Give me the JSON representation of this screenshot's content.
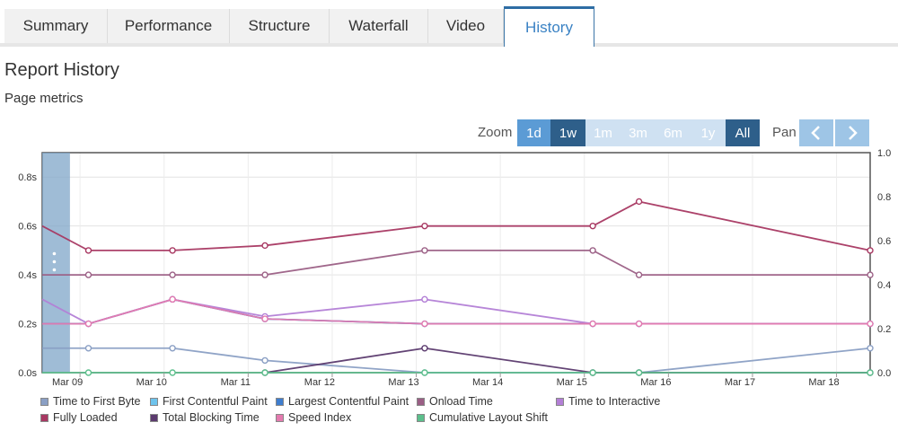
{
  "tabs": [
    {
      "label": "Summary"
    },
    {
      "label": "Performance"
    },
    {
      "label": "Structure"
    },
    {
      "label": "Waterfall"
    },
    {
      "label": "Video"
    },
    {
      "label": "History"
    }
  ],
  "active_tab": "History",
  "page_title": "Report History",
  "section_title": "Page metrics",
  "zoom": {
    "label": "Zoom",
    "buttons": [
      {
        "label": "1d",
        "state": "enabled"
      },
      {
        "label": "1w",
        "state": "selected"
      },
      {
        "label": "1m",
        "state": "disabled"
      },
      {
        "label": "3m",
        "state": "disabled"
      },
      {
        "label": "6m",
        "state": "disabled"
      },
      {
        "label": "1y",
        "state": "disabled"
      },
      {
        "label": "All",
        "state": "selected"
      }
    ]
  },
  "pan": {
    "label": "Pan"
  },
  "colors": {
    "accent": "#3a82c4",
    "zoom_enabled": "#5b9bd5",
    "zoom_selected": "#2e5f8a",
    "zoom_disabled": "#cfe1f2",
    "selection": "#7fa6c8"
  },
  "chart_data": {
    "type": "line",
    "x_axis": {
      "tick_labels": [
        "Mar 09",
        "Mar 10",
        "Mar 11",
        "Mar 12",
        "Mar 13",
        "Mar 14",
        "Mar 15",
        "Mar 16",
        "Mar 17",
        "Mar 18"
      ],
      "range_days": [
        8.55,
        18.4
      ]
    },
    "y_left": {
      "unit": "s",
      "range": [
        0,
        0.9
      ],
      "tick_labels": [
        "0.0s",
        "0.2s",
        "0.4s",
        "0.6s",
        "0.8s"
      ]
    },
    "y_right": {
      "range": [
        0,
        1.0
      ],
      "tick_labels": [
        "0.0",
        "0.2",
        "0.4",
        "0.6",
        "0.8",
        "1.0"
      ]
    },
    "grid": true,
    "selected_range_days": [
      8.55,
      8.88
    ],
    "series": [
      {
        "name": "Time to First Byte",
        "color": "#8a9fc4",
        "axis": "left",
        "points": [
          [
            8.55,
            0.1
          ],
          [
            9.1,
            0.1
          ],
          [
            10.1,
            0.1
          ],
          [
            11.2,
            0.05
          ],
          [
            13.1,
            0.0
          ],
          [
            15.1,
            0.0
          ],
          [
            15.65,
            0.0
          ],
          [
            18.4,
            0.1
          ]
        ]
      },
      {
        "name": "First Contentful Paint",
        "color": "#6ec3ec",
        "axis": "left",
        "points": [
          [
            8.55,
            0.2
          ],
          [
            9.1,
            0.2
          ],
          [
            10.1,
            0.3
          ],
          [
            11.2,
            0.22
          ],
          [
            13.1,
            0.2
          ],
          [
            15.1,
            0.2
          ],
          [
            15.65,
            0.2
          ],
          [
            18.4,
            0.2
          ]
        ]
      },
      {
        "name": "Largest Contentful Paint",
        "color": "#3f7ecf",
        "axis": "left",
        "points": [
          [
            8.55,
            0.2
          ],
          [
            9.1,
            0.2
          ],
          [
            10.1,
            0.3
          ],
          [
            11.2,
            0.22
          ],
          [
            13.1,
            0.2
          ],
          [
            15.1,
            0.2
          ],
          [
            15.65,
            0.2
          ],
          [
            18.4,
            0.2
          ]
        ]
      },
      {
        "name": "Onload Time",
        "color": "#9b5f85",
        "axis": "left",
        "points": [
          [
            8.55,
            0.4
          ],
          [
            9.1,
            0.4
          ],
          [
            10.1,
            0.4
          ],
          [
            11.2,
            0.4
          ],
          [
            13.1,
            0.5
          ],
          [
            15.1,
            0.5
          ],
          [
            15.65,
            0.4
          ],
          [
            18.4,
            0.4
          ]
        ]
      },
      {
        "name": "Time to Interactive",
        "color": "#b37fd6",
        "axis": "left",
        "points": [
          [
            8.55,
            0.3
          ],
          [
            9.1,
            0.2
          ],
          [
            10.1,
            0.3
          ],
          [
            11.2,
            0.23
          ],
          [
            13.1,
            0.3
          ],
          [
            15.1,
            0.2
          ],
          [
            15.65,
            0.2
          ],
          [
            18.4,
            0.2
          ]
        ]
      },
      {
        "name": "Fully Loaded",
        "color": "#a83862",
        "axis": "left",
        "points": [
          [
            8.55,
            0.6
          ],
          [
            9.1,
            0.5
          ],
          [
            10.1,
            0.5
          ],
          [
            11.2,
            0.52
          ],
          [
            13.1,
            0.6
          ],
          [
            15.1,
            0.6
          ],
          [
            15.65,
            0.7
          ],
          [
            18.4,
            0.5
          ]
        ]
      },
      {
        "name": "Total Blocking Time",
        "color": "#5b3a6e",
        "axis": "left",
        "points": [
          [
            11.2,
            0.0
          ],
          [
            13.1,
            0.1
          ],
          [
            15.1,
            0.0
          ],
          [
            15.65,
            0.0
          ],
          [
            18.4,
            0.0
          ]
        ]
      },
      {
        "name": "Speed Index",
        "color": "#e47aaf",
        "axis": "left",
        "points": [
          [
            8.55,
            0.2
          ],
          [
            9.1,
            0.2
          ],
          [
            10.1,
            0.3
          ],
          [
            11.2,
            0.22
          ],
          [
            13.1,
            0.2
          ],
          [
            15.1,
            0.2
          ],
          [
            15.65,
            0.2
          ],
          [
            18.4,
            0.2
          ]
        ]
      },
      {
        "name": "Cumulative Layout Shift",
        "color": "#5cbf8c",
        "axis": "right",
        "points": [
          [
            8.55,
            0.0
          ],
          [
            9.1,
            0.0
          ],
          [
            10.1,
            0.0
          ],
          [
            11.2,
            0.0
          ],
          [
            13.1,
            0.0
          ],
          [
            15.1,
            0.0
          ],
          [
            15.65,
            0.0
          ],
          [
            18.4,
            0.0
          ]
        ]
      }
    ]
  },
  "legend": [
    {
      "label": "Time to First Byte",
      "color": "#8a9fc4"
    },
    {
      "label": "First Contentful Paint",
      "color": "#6ec3ec"
    },
    {
      "label": "Largest Contentful Paint",
      "color": "#3f7ecf"
    },
    {
      "label": "Onload Time",
      "color": "#9b5f85"
    },
    {
      "label": "Time to Interactive",
      "color": "#b37fd6"
    },
    {
      "label": "Fully Loaded",
      "color": "#a83862"
    },
    {
      "label": "Total Blocking Time",
      "color": "#5b3a6e"
    },
    {
      "label": "Speed Index",
      "color": "#e47aaf"
    },
    {
      "label": "Cumulative Layout Shift",
      "color": "#5cbf8c"
    }
  ]
}
